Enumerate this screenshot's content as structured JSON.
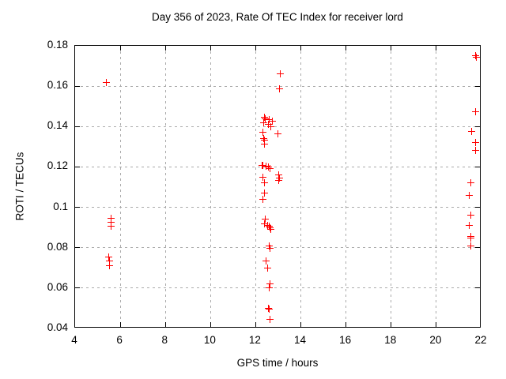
{
  "title": "Day 356 of 2023, Rate Of TEC Index for receiver lord",
  "chart_data": {
    "type": "scatter",
    "title": "Day 356 of 2023, Rate Of TEC Index for receiver lord",
    "xlabel": "GPS time / hours",
    "ylabel": "ROTI / TECUs",
    "xlim": [
      4,
      22
    ],
    "ylim": [
      0.04,
      0.18
    ],
    "xticks": [
      4,
      6,
      8,
      10,
      12,
      14,
      16,
      18,
      20,
      22
    ],
    "xtick_labels": [
      "4",
      "6",
      "8",
      "10",
      "12",
      "14",
      "16",
      "18",
      "20",
      "22"
    ],
    "yticks": [
      0.04,
      0.06,
      0.08,
      0.1,
      0.12,
      0.14,
      0.16,
      0.18
    ],
    "ytick_labels": [
      "0.04",
      "0.06",
      "0.08",
      "0.1",
      "0.12",
      "0.14",
      "0.16",
      "0.18"
    ],
    "grid": true,
    "grid_style": "dashed",
    "legend_position": "none",
    "marker": "plus",
    "marker_color": "#ff0000",
    "grid_color": "#aaaaaa",
    "border_color": "#000000",
    "background_color": "#ffffff",
    "points": [
      [
        5.38,
        0.162
      ],
      [
        5.59,
        0.0945
      ],
      [
        5.59,
        0.0925
      ],
      [
        5.61,
        0.0905
      ],
      [
        5.49,
        0.0755
      ],
      [
        5.51,
        0.0735
      ],
      [
        5.51,
        0.071
      ],
      [
        13.08,
        0.166
      ],
      [
        13.06,
        0.1585
      ],
      [
        12.38,
        0.1445
      ],
      [
        12.42,
        0.144
      ],
      [
        12.58,
        0.1435
      ],
      [
        12.72,
        0.1425
      ],
      [
        12.35,
        0.142
      ],
      [
        12.55,
        0.141
      ],
      [
        12.65,
        0.14
      ],
      [
        12.3,
        0.137
      ],
      [
        12.97,
        0.1365
      ],
      [
        12.36,
        0.134
      ],
      [
        12.38,
        0.1333
      ],
      [
        12.39,
        0.1315
      ],
      [
        12.28,
        0.1207
      ],
      [
        12.33,
        0.1207
      ],
      [
        12.44,
        0.1203
      ],
      [
        12.56,
        0.12
      ],
      [
        12.64,
        0.119
      ],
      [
        12.3,
        0.115
      ],
      [
        13.03,
        0.116
      ],
      [
        13.07,
        0.1145
      ],
      [
        13.03,
        0.1135
      ],
      [
        12.37,
        0.112
      ],
      [
        12.39,
        0.107
      ],
      [
        12.33,
        0.104
      ],
      [
        12.42,
        0.094
      ],
      [
        12.4,
        0.092
      ],
      [
        12.54,
        0.091
      ],
      [
        12.6,
        0.0905
      ],
      [
        12.62,
        0.09
      ],
      [
        12.65,
        0.089
      ],
      [
        12.6,
        0.081
      ],
      [
        12.64,
        0.0795
      ],
      [
        12.46,
        0.0735
      ],
      [
        12.51,
        0.07
      ],
      [
        12.63,
        0.062
      ],
      [
        12.59,
        0.06
      ],
      [
        12.55,
        0.05
      ],
      [
        12.59,
        0.0495
      ],
      [
        12.63,
        0.0445
      ],
      [
        21.75,
        0.1752
      ],
      [
        21.76,
        0.1742
      ],
      [
        21.75,
        0.1475
      ],
      [
        21.55,
        0.1375
      ],
      [
        21.75,
        0.132
      ],
      [
        21.75,
        0.128
      ],
      [
        21.51,
        0.112
      ],
      [
        21.47,
        0.106
      ],
      [
        21.51,
        0.096
      ],
      [
        21.47,
        0.091
      ],
      [
        21.52,
        0.0855
      ],
      [
        21.53,
        0.0848
      ],
      [
        21.52,
        0.081
      ]
    ]
  }
}
